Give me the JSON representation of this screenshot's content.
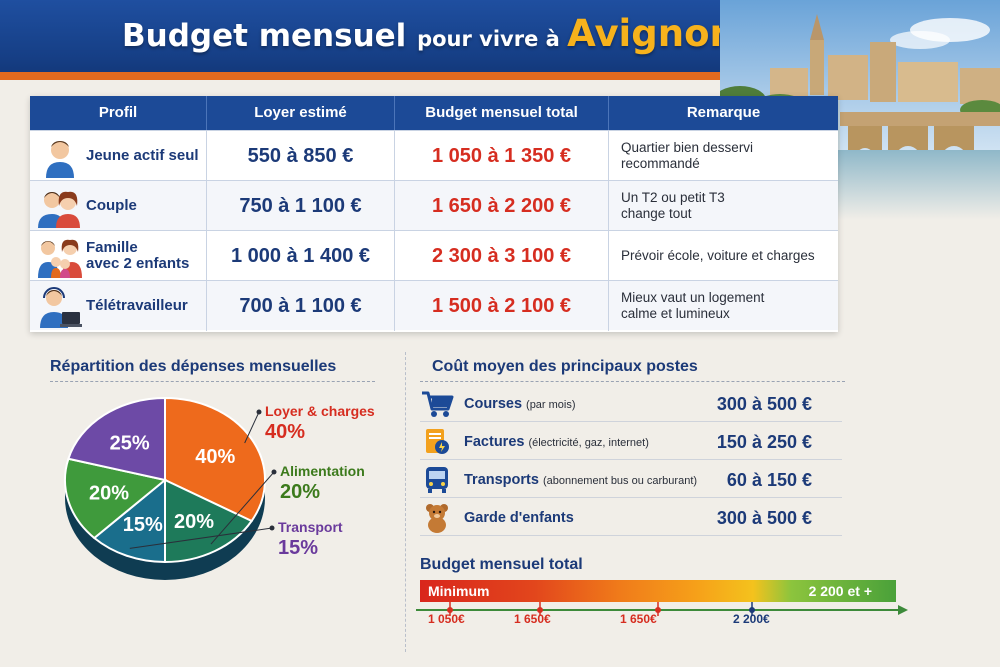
{
  "header": {
    "title_part1": "Budget mensuel ",
    "title_part2": "pour vivre à ",
    "title_part3": "Avignon"
  },
  "table": {
    "headers": [
      "Profil",
      "Loyer estimé",
      "Budget mensuel total",
      "Remarque"
    ],
    "rows": [
      {
        "icon": "young-man-icon",
        "profile_line1": "Jeune actif seul",
        "profile_line2": "",
        "rent": "550 à 850 €",
        "total": "1 050 à 1 350 €",
        "remark_line1": "Quartier bien desservi",
        "remark_line2": "recommandé"
      },
      {
        "icon": "couple-icon",
        "profile_line1": "Couple",
        "profile_line2": "",
        "rent": "750 à 1 100 €",
        "total": "1 650 à 2 200 €",
        "remark_line1": "Un T2 ou petit T3",
        "remark_line2": "change tout"
      },
      {
        "icon": "family-icon",
        "profile_line1": "Famille",
        "profile_line2": "avec 2 enfants",
        "rent": "1 000 à 1 400 €",
        "total": "2 300 à 3 100 €",
        "remark_line1": "Prévoir école, voiture et charges",
        "remark_line2": ""
      },
      {
        "icon": "remote-worker-icon",
        "profile_line1": "Télétravailleur",
        "profile_line2": "",
        "rent": "700 à 1 100 €",
        "total": "1 500 à 2 100 €",
        "remark_line1": "Mieux vaut un logement",
        "remark_line2": "calme et lumineux"
      }
    ]
  },
  "pie": {
    "title": "Répartition des dépenses mensuelles"
  },
  "chart_data": {
    "type": "pie",
    "title": "Répartition des dépenses mensuelles",
    "slices": [
      {
        "label": "Loyer & charges",
        "value": 40,
        "display": "40%",
        "color": "#ee6a1c",
        "label_color": "#d62d20"
      },
      {
        "label": "Alimentation",
        "value": 20,
        "display": "20%",
        "color": "#1e7a5a",
        "label_color": "#3c7a1c"
      },
      {
        "label": "Transport",
        "value": 15,
        "display": "15%",
        "color": "#1a6e8c",
        "label_color": "#6a3a9c"
      },
      {
        "label": "",
        "value": 20,
        "display": "20%",
        "color": "#3f9a3c",
        "label_color": "#ffffff"
      },
      {
        "label": "",
        "value": 25,
        "display": "25%",
        "color": "#6d4aa6",
        "label_color": "#ffffff"
      }
    ]
  },
  "costs": {
    "title": "Coût moyen des principaux postes",
    "items": [
      {
        "icon": "shopping-cart-icon",
        "label": "Courses",
        "sub": "(par mois)",
        "value": "300 à 500 €"
      },
      {
        "icon": "bills-icon",
        "label": "Factures",
        "sub": "(électricité, gaz, internet)",
        "value": "150 à 250 €"
      },
      {
        "icon": "bus-icon",
        "label": "Transports",
        "sub": "(abonnement bus ou carburant)",
        "value": "60 à 150 €"
      },
      {
        "icon": "teddy-bear-icon",
        "label": "Garde d'enfants",
        "sub": "",
        "value": "300 à 500 €"
      }
    ]
  },
  "budget_bar": {
    "title": "Budget mensuel total",
    "min_label": "Minimum",
    "max_label": "2 200 et +",
    "ticks": [
      "1 050€",
      "1 650€",
      "1 650€",
      "2 200€"
    ]
  },
  "colors": {
    "navy": "#1c4a97",
    "accent_orange": "#e26a1e",
    "gold": "#f7b21c",
    "red": "#d62d20"
  }
}
